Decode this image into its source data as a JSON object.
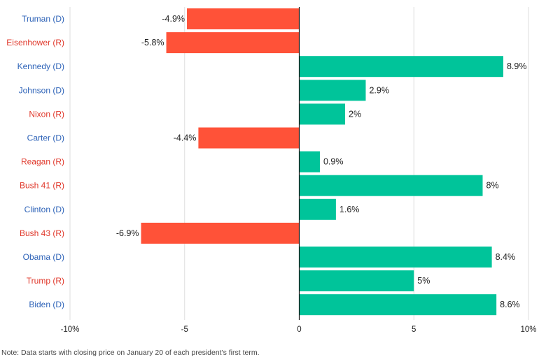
{
  "chart_data": {
    "type": "bar",
    "orientation": "horizontal",
    "categories": [
      {
        "label": "Truman (D)",
        "party": "D"
      },
      {
        "label": "Eisenhower (R)",
        "party": "R"
      },
      {
        "label": "Kennedy (D)",
        "party": "D"
      },
      {
        "label": "Johnson (D)",
        "party": "D"
      },
      {
        "label": "Nixon (R)",
        "party": "R"
      },
      {
        "label": "Carter (D)",
        "party": "D"
      },
      {
        "label": "Reagan (R)",
        "party": "R"
      },
      {
        "label": "Bush 41 (R)",
        "party": "R"
      },
      {
        "label": "Clinton (D)",
        "party": "D"
      },
      {
        "label": "Bush 43 (R)",
        "party": "R"
      },
      {
        "label": "Obama (D)",
        "party": "D"
      },
      {
        "label": "Trump (R)",
        "party": "R"
      },
      {
        "label": "Biden (D)",
        "party": "D"
      }
    ],
    "values": [
      -4.9,
      -5.8,
      8.9,
      2.9,
      2,
      -4.4,
      0.9,
      8,
      1.6,
      -6.9,
      8.4,
      5,
      8.6
    ],
    "value_labels": [
      "-4.9%",
      "-5.8%",
      "8.9%",
      "2.9%",
      "2%",
      "-4.4%",
      "0.9%",
      "8%",
      "1.6%",
      "-6.9%",
      "8.4%",
      "5%",
      "8.6%"
    ],
    "xlim": [
      -10,
      10
    ],
    "ticks": [
      {
        "value": -10,
        "label": "-10%"
      },
      {
        "value": -5,
        "label": "-5"
      },
      {
        "value": 0,
        "label": "0"
      },
      {
        "value": 5,
        "label": "5"
      },
      {
        "value": 10,
        "label": "10%"
      }
    ],
    "grid": true,
    "colors": {
      "positive": "#00c49a",
      "negative": "#ff5238",
      "democrat_label": "#2e63b8",
      "republican_label": "#e0382b",
      "gridline": "#dddddd",
      "zero_line": "#111111"
    }
  },
  "note": "Note: Data starts with closing price on January 20 of each president's first term."
}
